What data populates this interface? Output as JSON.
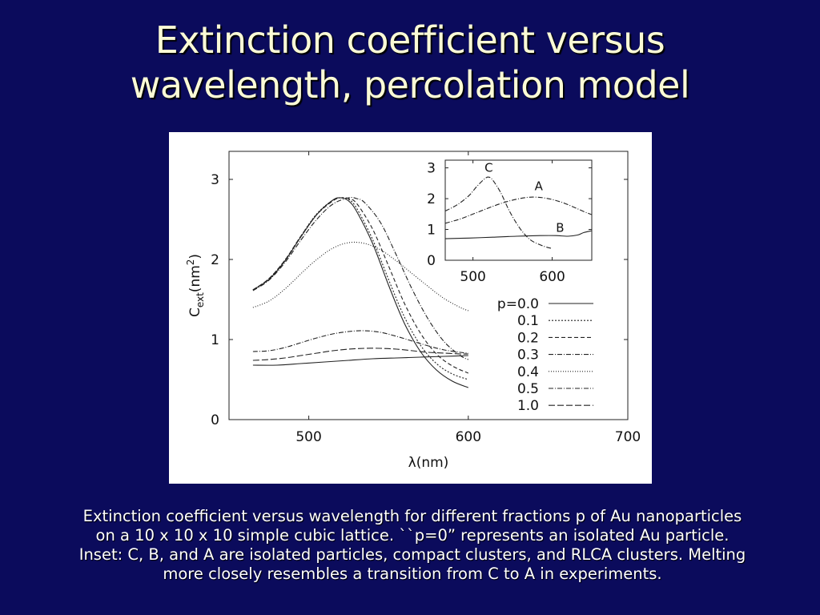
{
  "slide": {
    "title_line1": "Extinction coefficient versus",
    "title_line2": "wavelength, percolation model",
    "caption": "Extinction coefficient versus wavelength for different fractions p of Au nanoparticles on a 10 x 10 x 10 simple cubic lattice. ``p=0” represents an isolated Au particle.  Inset: C, B, and A are isolated particles, compact clusters, and RLCA clusters.  Melting more closely resembles a transition from C to A in experiments.",
    "colors": {
      "background": "#0b0b5c",
      "title": "#fbfbd6",
      "caption": "#ffffff",
      "panel": "#ffffff"
    }
  },
  "chart_data": [
    {
      "type": "line",
      "xlabel": "λ(nm)",
      "ylabel": "Cext(nm2)",
      "ylabel_parts": {
        "main": "C",
        "sub": "ext",
        "unit_open": "(nm",
        "sup": "2",
        "unit_close": ")"
      },
      "xlim": [
        450,
        700
      ],
      "ylim": [
        0,
        3.35
      ],
      "xticks": [
        500,
        600,
        700
      ],
      "yticks": [
        0,
        1,
        2,
        3
      ],
      "grid": false,
      "legend_position": "bottom-right inside",
      "legend_prefix": "p=",
      "series": [
        {
          "name": "0.0",
          "style": "solid",
          "x": [
            465,
            475,
            485,
            495,
            505,
            515,
            520,
            525,
            530,
            540,
            550,
            560,
            570,
            580,
            590,
            600
          ],
          "y": [
            1.62,
            1.75,
            1.98,
            2.28,
            2.56,
            2.74,
            2.77,
            2.73,
            2.6,
            2.2,
            1.68,
            1.2,
            0.85,
            0.62,
            0.48,
            0.4
          ]
        },
        {
          "name": "0.1",
          "style": "dotted",
          "x": [
            465,
            475,
            485,
            495,
            505,
            515,
            520,
            525,
            530,
            540,
            550,
            560,
            570,
            580,
            590,
            600
          ],
          "y": [
            1.62,
            1.76,
            1.99,
            2.29,
            2.57,
            2.74,
            2.77,
            2.75,
            2.64,
            2.25,
            1.75,
            1.28,
            0.93,
            0.7,
            0.57,
            0.5
          ]
        },
        {
          "name": "0.2",
          "style": "dashed",
          "x": [
            465,
            475,
            485,
            495,
            505,
            515,
            520,
            525,
            530,
            540,
            550,
            560,
            570,
            580,
            590,
            600
          ],
          "y": [
            1.62,
            1.76,
            1.99,
            2.29,
            2.56,
            2.73,
            2.77,
            2.76,
            2.7,
            2.38,
            1.92,
            1.45,
            1.08,
            0.82,
            0.67,
            0.58
          ]
        },
        {
          "name": "0.3",
          "style": "dash-dot",
          "x": [
            465,
            475,
            485,
            495,
            505,
            515,
            525,
            530,
            535,
            545,
            555,
            565,
            575,
            585,
            595,
            600
          ],
          "y": [
            1.61,
            1.74,
            1.96,
            2.24,
            2.5,
            2.69,
            2.77,
            2.76,
            2.71,
            2.46,
            2.05,
            1.62,
            1.25,
            0.97,
            0.8,
            0.75
          ]
        },
        {
          "name": "0.4",
          "style": "fine-dotted",
          "x": [
            465,
            475,
            485,
            495,
            505,
            515,
            525,
            535,
            545,
            555,
            565,
            575,
            585,
            595,
            600
          ],
          "y": [
            1.4,
            1.48,
            1.63,
            1.82,
            2.0,
            2.14,
            2.21,
            2.2,
            2.12,
            1.98,
            1.82,
            1.66,
            1.51,
            1.4,
            1.36
          ]
        },
        {
          "name": "0.5",
          "style": "dash-dot",
          "x": [
            465,
            475,
            485,
            495,
            505,
            515,
            525,
            535,
            545,
            555,
            565,
            575,
            585,
            595,
            600
          ],
          "y": [
            0.85,
            0.86,
            0.9,
            0.96,
            1.02,
            1.07,
            1.1,
            1.11,
            1.09,
            1.04,
            0.98,
            0.92,
            0.87,
            0.84,
            0.83
          ]
        },
        {
          "name": "1.0",
          "style": "loose-dashed",
          "x": [
            465,
            475,
            485,
            495,
            505,
            515,
            525,
            535,
            545,
            555,
            565,
            575,
            585,
            595,
            600
          ],
          "y": [
            0.74,
            0.75,
            0.77,
            0.8,
            0.83,
            0.86,
            0.88,
            0.89,
            0.89,
            0.88,
            0.86,
            0.84,
            0.83,
            0.82,
            0.82
          ]
        },
        {
          "name": "",
          "style": "solid",
          "x": [
            465,
            480,
            495,
            510,
            525,
            540,
            555,
            570,
            585,
            600
          ],
          "y": [
            0.68,
            0.68,
            0.7,
            0.72,
            0.74,
            0.76,
            0.77,
            0.78,
            0.79,
            0.8
          ]
        }
      ]
    },
    {
      "type": "line",
      "inset": true,
      "xlim": [
        465,
        650
      ],
      "ylim": [
        0,
        3.25
      ],
      "xticks": [
        500,
        600
      ],
      "yticks": [
        0,
        1,
        2,
        3
      ],
      "grid": false,
      "series": [
        {
          "name": "C",
          "style": "dash-dot",
          "x": [
            465,
            480,
            495,
            505,
            515,
            520,
            525,
            535,
            545,
            555,
            565,
            575,
            590,
            600
          ],
          "y": [
            1.6,
            1.8,
            2.1,
            2.4,
            2.65,
            2.7,
            2.6,
            2.2,
            1.65,
            1.2,
            0.85,
            0.62,
            0.45,
            0.38
          ]
        },
        {
          "name": "A",
          "style": "dash-dot",
          "x": [
            465,
            485,
            505,
            525,
            545,
            565,
            580,
            595,
            610,
            625,
            640,
            650
          ],
          "y": [
            1.2,
            1.35,
            1.55,
            1.75,
            1.92,
            2.03,
            2.05,
            2.0,
            1.9,
            1.75,
            1.58,
            1.48
          ]
        },
        {
          "name": "B",
          "style": "solid",
          "x": [
            465,
            495,
            525,
            555,
            585,
            605,
            620,
            632,
            640,
            650
          ],
          "y": [
            0.7,
            0.72,
            0.75,
            0.78,
            0.8,
            0.8,
            0.78,
            0.82,
            0.9,
            0.96
          ]
        }
      ],
      "curve_labels": [
        {
          "text": "C",
          "x": 520,
          "y": 3.0
        },
        {
          "text": "A",
          "x": 583,
          "y": 2.4
        },
        {
          "text": "B",
          "x": 610,
          "y": 1.05
        }
      ]
    }
  ]
}
